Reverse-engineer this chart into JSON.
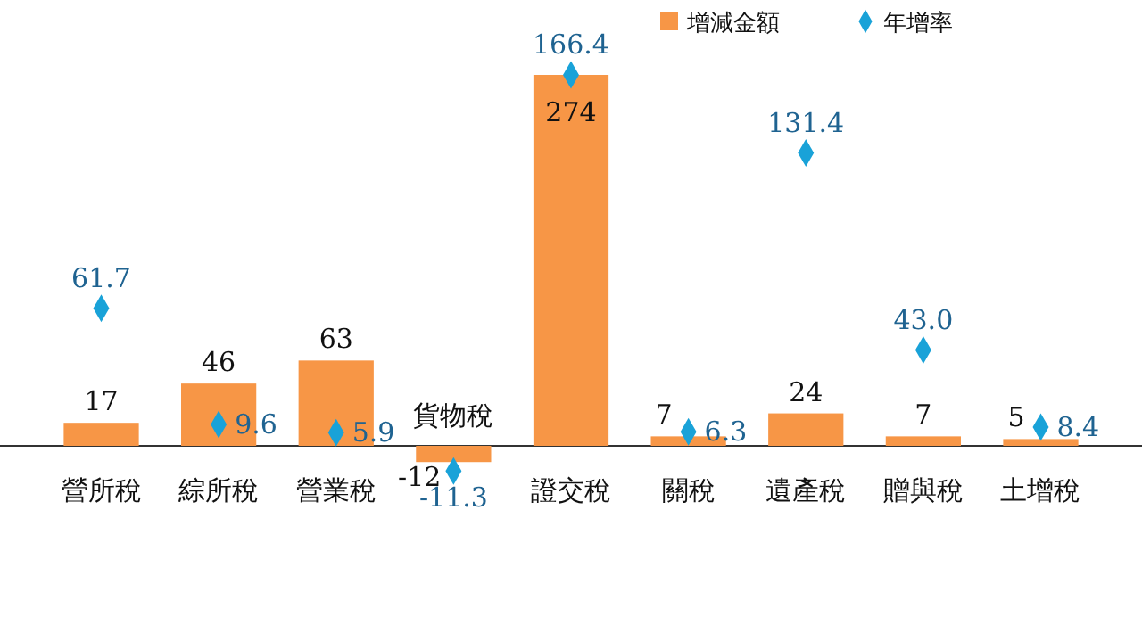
{
  "chart_data": {
    "type": "bar",
    "categories": [
      "營所稅",
      "綜所稅",
      "營業稅",
      "貨物稅",
      "證交稅",
      "關稅",
      "遺產稅",
      "贈與稅",
      "土增稅"
    ],
    "series": [
      {
        "name": "增減金額",
        "color": "#f79646",
        "values": [
          17,
          46,
          63,
          -12,
          274,
          7,
          24,
          7,
          5
        ]
      },
      {
        "name": "年增率",
        "type": "scatter",
        "axis": "y2",
        "color": "#19a2d8",
        "values": [
          61.7,
          9.6,
          5.9,
          -11.3,
          166.4,
          6.3,
          131.4,
          43.0,
          8.4
        ],
        "value_labels": [
          "61.7",
          "9.6",
          "5.9",
          "-11.3",
          "166.4",
          "6.3",
          "131.4",
          "43.0",
          "8.4"
        ]
      }
    ],
    "data_labels": true,
    "legend": "top right",
    "marker": "diamond"
  }
}
